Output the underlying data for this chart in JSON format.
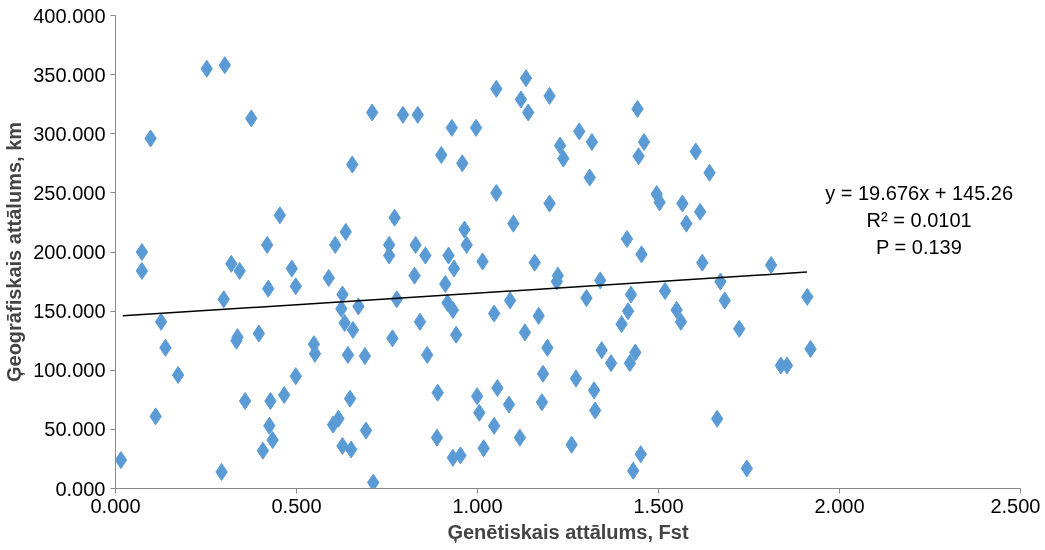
{
  "chart_data": {
    "type": "scatter",
    "xlabel": "Ģenētiskais attālums, Fst",
    "ylabel": "Ģeogrāfiskais attālums, km",
    "xlim": [
      0,
      2.5
    ],
    "ylim": [
      0,
      400
    ],
    "xticks": [
      {
        "value": 0,
        "label": "0.000"
      },
      {
        "value": 0.5,
        "label": "0.500"
      },
      {
        "value": 1,
        "label": "1.000"
      },
      {
        "value": 1.5,
        "label": "1.500"
      },
      {
        "value": 2,
        "label": "2.000"
      },
      {
        "value": 2.5,
        "label": "2.500"
      }
    ],
    "yticks": [
      {
        "value": 0,
        "label": "0.000"
      },
      {
        "value": 50,
        "label": "50.000"
      },
      {
        "value": 100,
        "label": "100.000"
      },
      {
        "value": 150,
        "label": "150.000"
      },
      {
        "value": 200,
        "label": "200.000"
      },
      {
        "value": 250,
        "label": "250.000"
      },
      {
        "value": 300,
        "label": "300.000"
      },
      {
        "value": 350,
        "label": "350.000"
      },
      {
        "value": 400,
        "label": "400.000"
      }
    ],
    "grid": false,
    "annotations": [
      "y = 19.676x + 145.26",
      "R² = 0.0101",
      "P = 0.139"
    ],
    "series": [
      {
        "color": "#5b9bd5",
        "marker": "diamond",
        "x": [
          0.015,
          0.073,
          0.073,
          0.097,
          0.111,
          0.126,
          0.138,
          0.173,
          0.252,
          0.302,
          0.293,
          0.299,
          0.32,
          0.334,
          0.337,
          0.343,
          0.358,
          0.375,
          0.396,
          0.407,
          0.419,
          0.422,
          0.428,
          0.425,
          0.434,
          0.454,
          0.466,
          0.487,
          0.498,
          0.498,
          0.548,
          0.551,
          0.589,
          0.607,
          0.601,
          0.616,
          0.624,
          0.627,
          0.627,
          0.636,
          0.633,
          0.642,
          0.648,
          0.651,
          0.654,
          0.656,
          0.671,
          0.689,
          0.692,
          0.712,
          0.709,
          0.756,
          0.756,
          0.765,
          0.771,
          0.777,
          0.794,
          0.829,
          0.826,
          0.835,
          0.841,
          0.856,
          0.861,
          0.888,
          0.89,
          0.9,
          0.911,
          0.917,
          0.92,
          0.929,
          0.932,
          0.932,
          0.935,
          0.941,
          0.953,
          0.958,
          0.964,
          0.97,
          0.996,
          0.999,
          1.005,
          1.014,
          1.017,
          1.046,
          1.046,
          1.052,
          1.052,
          1.055,
          1.087,
          1.09,
          1.099,
          1.117,
          1.12,
          1.131,
          1.134,
          1.14,
          1.158,
          1.169,
          1.178,
          1.181,
          1.193,
          1.199,
          1.199,
          1.222,
          1.219,
          1.228,
          1.237,
          1.26,
          1.272,
          1.281,
          1.301,
          1.31,
          1.316,
          1.322,
          1.325,
          1.339,
          1.343,
          1.369,
          1.398,
          1.413,
          1.416,
          1.421,
          1.424,
          1.43,
          1.436,
          1.442,
          1.445,
          1.451,
          1.453,
          1.46,
          1.495,
          1.503,
          1.518,
          1.55,
          1.562,
          1.566,
          1.577,
          1.603,
          1.615,
          1.621,
          1.641,
          1.662,
          1.671,
          1.683,
          1.723,
          1.744,
          1.811,
          1.838,
          1.855,
          1.911,
          1.92
        ],
        "values": [
          24,
          200,
          184,
          296,
          61,
          141,
          119,
          96,
          355,
          358,
          14,
          160,
          190,
          125,
          128,
          184,
          74,
          313,
          131,
          32,
          206,
          169,
          74,
          53,
          41,
          231,
          79,
          186,
          171,
          95,
          122,
          114,
          178,
          206,
          54,
          59,
          152,
          164,
          36,
          217,
          140,
          113,
          76,
          33,
          274,
          134,
          154,
          112,
          49,
          5,
          318,
          197,
          206,
          127,
          229,
          160,
          316,
          206,
          180,
          316,
          141,
          197,
          113,
          43,
          81,
          282,
          173,
          157,
          197,
          305,
          151,
          26,
          186,
          130,
          28,
          275,
          219,
          206,
          305,
          78,
          64,
          192,
          34,
          148,
          53,
          338,
          250,
          85,
          71,
          159,
          224,
          43,
          329,
          132,
          347,
          318,
          191,
          146,
          73,
          97,
          119,
          241,
          332,
          180,
          175,
          290,
          279,
          37,
          93,
          302,
          161,
          263,
          293,
          83,
          66,
          176,
          117,
          106,
          139,
          211,
          150,
          106,
          164,
          15,
          115,
          321,
          281,
          29,
          198,
          293,
          249,
          242,
          167,
          151,
          141,
          241,
          224,
          285,
          234,
          191,
          267,
          59,
          175,
          159,
          135,
          17,
          189,
          104,
          104,
          162,
          118
        ]
      },
      {
        "type": "line",
        "color": "#000000",
        "x": [
          0.02,
          1.91
        ],
        "values": [
          146,
          183
        ]
      }
    ]
  }
}
